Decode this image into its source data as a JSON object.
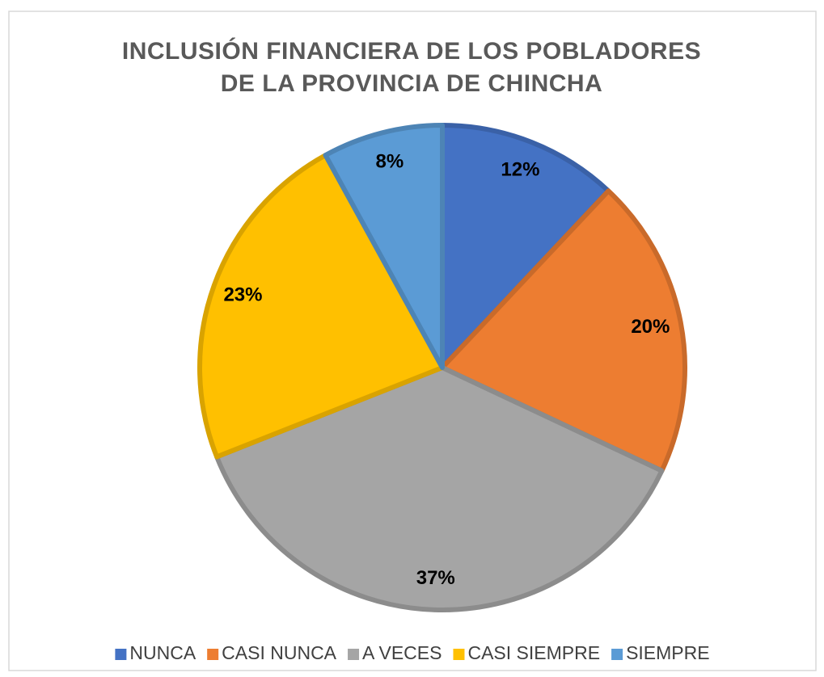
{
  "chart_data": {
    "type": "pie",
    "title": "INCLUSIÓN FINANCIERA DE LOS POBLADORES DE LA PROVINCIA DE CHINCHA",
    "categories": [
      "NUNCA",
      "CASI NUNCA",
      "A VECES",
      "CASI SIEMPRE",
      "SIEMPRE"
    ],
    "values": [
      12,
      20,
      37,
      23,
      8
    ],
    "value_labels": [
      "12%",
      "20%",
      "37%",
      "23%",
      "8%"
    ],
    "colors": [
      "#4472c4",
      "#ed7d31",
      "#a5a5a5",
      "#ffc000",
      "#5b9bd5"
    ],
    "legend": "bottom"
  }
}
